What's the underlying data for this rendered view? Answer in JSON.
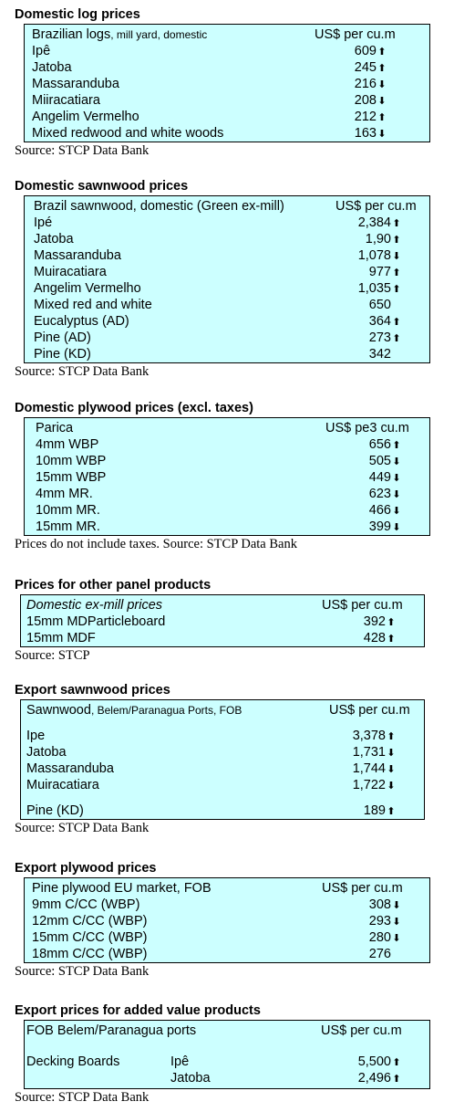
{
  "sections": [
    {
      "title": "Domestic log prices",
      "header": {
        "label": "Brazilian logs",
        "label_small": ", mill yard, domestic",
        "unit": "US$ per cu.m"
      },
      "rows": [
        {
          "name": "Ipê",
          "value": "609",
          "arrow": "⬆"
        },
        {
          "name": "Jatoba",
          "value": "245",
          "arrow": "⬆"
        },
        {
          "name": "Massaranduba",
          "value": "216",
          "arrow": "⬇"
        },
        {
          "name": "Miiracatiara",
          "value": "208",
          "arrow": "⬇"
        },
        {
          "name": "Angelim Vermelho",
          "value": "212",
          "arrow": "⬆"
        },
        {
          "name": "Mixed redwood and white woods",
          "value": "163",
          "arrow": "⬇"
        }
      ],
      "source": "Source: STCP Data Bank"
    },
    {
      "title": "Domestic sawnwood prices",
      "header": {
        "label": "Brazil sawnwood, domestic (Green ex-mill)",
        "unit": "US$ per cu.m"
      },
      "rows": [
        {
          "name": "Ipé",
          "value": "2,384",
          "arrow": "⬆"
        },
        {
          "name": "Jatoba",
          "value": "1,90",
          "arrow": "⬆"
        },
        {
          "name": "Massaranduba",
          "value": "1,078",
          "arrow": "⬇"
        },
        {
          "name": "Muiracatiara",
          "value": "977",
          "arrow": "⬆"
        },
        {
          "name": "Angelim Vermelho",
          "value": "1,035",
          "arrow": "⬆"
        },
        {
          "name": "Mixed red and white",
          "value": "650",
          "arrow": ""
        },
        {
          "name": "Eucalyptus (AD)",
          "value": "364",
          "arrow": "⬆"
        },
        {
          "name": "Pine (AD)",
          "value": "273",
          "arrow": "⬆"
        },
        {
          "name": "Pine (KD)",
          "value": "342",
          "arrow": ""
        }
      ],
      "source": "Source: STCP Data Bank"
    },
    {
      "title": "Domestic plywood prices (excl. taxes)",
      "header": {
        "label": "Parica",
        "unit": "US$ pe3 cu.m"
      },
      "rows": [
        {
          "name": "4mm WBP",
          "value": "656",
          "arrow": "⬆"
        },
        {
          "name": "10mm WBP",
          "value": "505",
          "arrow": "⬇"
        },
        {
          "name": "15mm WBP",
          "value": "449",
          "arrow": "⬇"
        },
        {
          "name": "4mm MR.",
          "value": "623",
          "arrow": "⬇"
        },
        {
          "name": "10mm MR.",
          "value": "466",
          "arrow": "⬇"
        },
        {
          "name": "15mm MR.",
          "value": "399",
          "arrow": "⬇"
        }
      ],
      "source": "Prices do not include taxes. Source: STCP Data Bank"
    },
    {
      "title": "Prices for other panel products",
      "header": {
        "label": "Domestic ex-mill prices",
        "unit": "US$ per cu.m"
      },
      "rows": [
        {
          "name": "15mm MDParticleboard",
          "value": "392",
          "arrow": "⬆"
        },
        {
          "name": "15mm MDF",
          "value": "428",
          "arrow": "⬆"
        }
      ],
      "source": "Source: STCP"
    },
    {
      "title": "Export sawnwood prices",
      "header": {
        "label": "Sawnwood",
        "label_small": ", Belem/Paranagua Ports, FOB",
        "unit": "US$ per cu.m"
      },
      "rows": [
        {
          "name": "Ipe",
          "value": "3,378",
          "arrow": "⬆"
        },
        {
          "name": "Jatoba",
          "value": "1,731",
          "arrow": "⬇"
        },
        {
          "name": "Massaranduba",
          "value": "1,744",
          "arrow": "⬇"
        },
        {
          "name": "Muiracatiara",
          "value": "1,722",
          "arrow": "⬇"
        },
        {
          "name": "Pine (KD)",
          "value": "189",
          "arrow": "⬆"
        }
      ],
      "source": "Source: STCP Data Bank"
    },
    {
      "title": "Export plywood prices",
      "header": {
        "label": "Pine plywood EU market, FOB",
        "unit": "US$ per cu.m"
      },
      "rows": [
        {
          "name": "9mm C/CC (WBP)",
          "value": "308",
          "arrow": "⬇"
        },
        {
          "name": "12mm C/CC (WBP)",
          "value": "293",
          "arrow": "⬇"
        },
        {
          "name": "15mm C/CC (WBP)",
          "value": "280",
          "arrow": "⬇"
        },
        {
          "name": "18mm C/CC (WBP)",
          "value": "276",
          "arrow": ""
        }
      ],
      "source": "Source: STCP Data Bank"
    },
    {
      "title": "Export prices for added value products",
      "header": {
        "label": "FOB Belem/Paranagua ports",
        "unit": "US$ per cu.m"
      },
      "group": "Decking Boards",
      "rows": [
        {
          "name": "Ipê",
          "value": "5,500",
          "arrow": "⬆"
        },
        {
          "name": "Jatoba",
          "value": "2,496",
          "arrow": "⬆"
        }
      ],
      "source": "Source: STCP Data Bank"
    }
  ]
}
